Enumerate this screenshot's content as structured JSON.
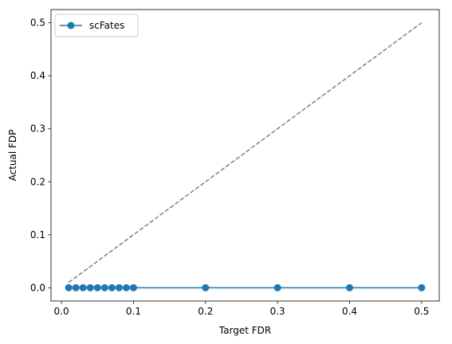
{
  "chart_data": {
    "type": "line",
    "xlabel": "Target FDR",
    "ylabel": "Actual FDP",
    "xlim": [
      -0.0145,
      0.5245
    ],
    "ylim": [
      -0.025,
      0.525
    ],
    "xticks": [
      0.0,
      0.1,
      0.2,
      0.3,
      0.4,
      0.5
    ],
    "xtick_labels": [
      "0.0",
      "0.1",
      "0.2",
      "0.3",
      "0.4",
      "0.5"
    ],
    "yticks": [
      0.0,
      0.1,
      0.2,
      0.3,
      0.4,
      0.5
    ],
    "ytick_labels": [
      "0.0",
      "0.1",
      "0.2",
      "0.3",
      "0.4",
      "0.5"
    ],
    "grid": false,
    "legend_position": "top-left",
    "series": [
      {
        "name": "scFates",
        "color": "#1f77b4",
        "marker": "circle",
        "x": [
          0.01,
          0.02,
          0.03,
          0.04,
          0.05,
          0.06,
          0.07,
          0.08,
          0.09,
          0.1,
          0.2,
          0.3,
          0.4,
          0.5
        ],
        "y": [
          0,
          0,
          0,
          0,
          0,
          0,
          0,
          0,
          0,
          0,
          0,
          0,
          0,
          0
        ]
      }
    ],
    "reference_line": {
      "style": "dashed",
      "color": "#808080",
      "x": [
        0.01,
        0.5
      ],
      "y": [
        0.01,
        0.5
      ]
    }
  }
}
